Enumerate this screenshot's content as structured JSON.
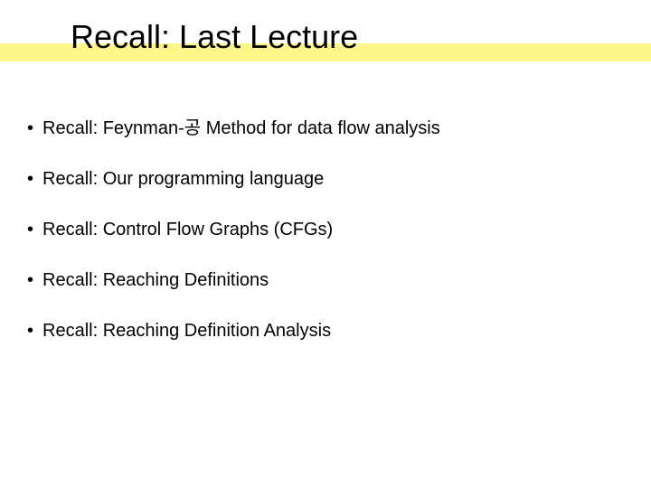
{
  "slide": {
    "title": "Recall: Last Lecture",
    "title_highlight_color": "#fef68a",
    "title_fontsize": 36,
    "bullet_fontsize": 20,
    "background_color": "#ffffff",
    "text_color": "#000000",
    "bullet_marker": "•",
    "bullets": [
      "Recall: Feynman-공  Method for data flow analysis",
      "Recall: Our programming language",
      "Recall: Control Flow Graphs (CFGs)",
      "Recall: Reaching Definitions",
      "Recall: Reaching Definition Analysis"
    ]
  }
}
